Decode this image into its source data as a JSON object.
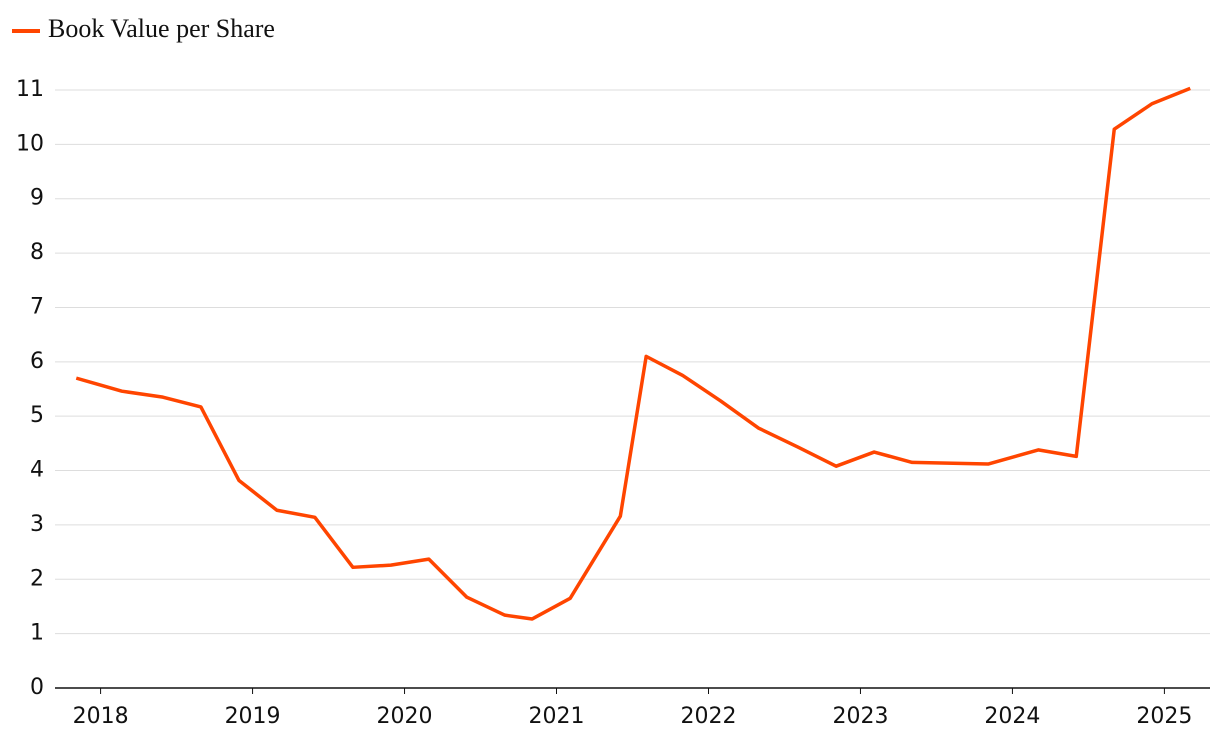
{
  "chart_data": {
    "type": "line",
    "series": [
      {
        "name": "Book Value per Share",
        "color": "#ff4500",
        "x": [
          2017.84,
          2018.14,
          2018.41,
          2018.66,
          2018.91,
          2019.16,
          2019.41,
          2019.66,
          2019.91,
          2020.16,
          2020.41,
          2020.66,
          2020.84,
          2021.09,
          2021.42,
          2021.59,
          2021.83,
          2022.08,
          2022.33,
          2022.59,
          2022.84,
          2023.09,
          2023.34,
          2023.84,
          2024.17,
          2024.42,
          2024.67,
          2024.92,
          2025.17
        ],
        "values": [
          5.7,
          5.46,
          5.35,
          5.17,
          3.82,
          3.27,
          3.14,
          2.22,
          2.26,
          2.37,
          1.67,
          1.34,
          1.27,
          1.65,
          3.16,
          6.1,
          5.75,
          5.28,
          4.78,
          4.43,
          4.08,
          4.34,
          4.15,
          4.12,
          4.38,
          4.26,
          10.28,
          10.75,
          11.03
        ]
      }
    ],
    "xlim": [
      2017.7,
      2025.3
    ],
    "xticks": [
      2018,
      2019,
      2020,
      2021,
      2022,
      2023,
      2024,
      2025
    ],
    "ylim": [
      0,
      11
    ],
    "yticks": [
      0,
      1,
      2,
      3,
      4,
      5,
      6,
      7,
      8,
      9,
      10,
      11
    ],
    "grid": true
  }
}
